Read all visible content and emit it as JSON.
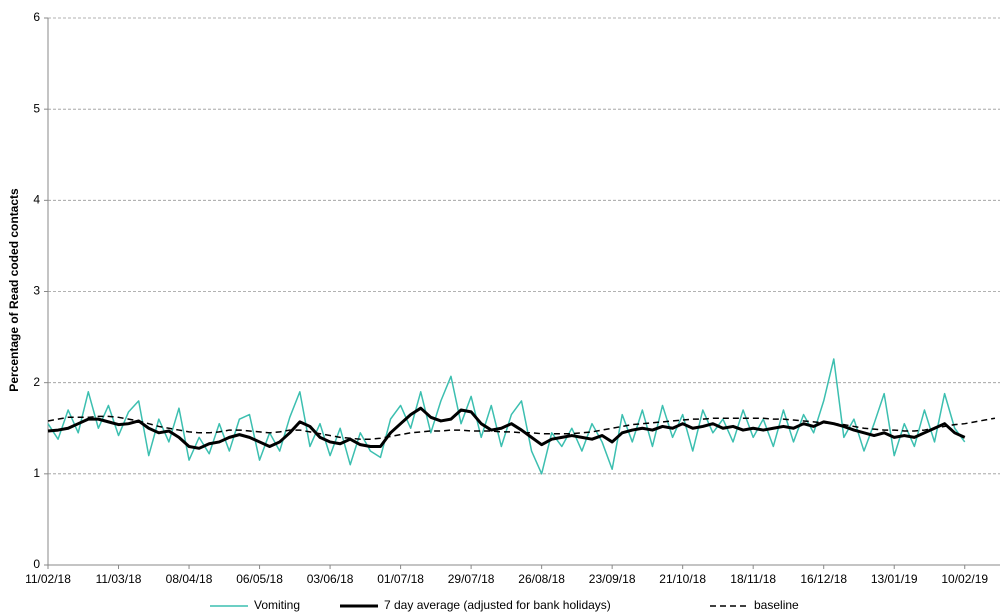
{
  "chart_data": {
    "type": "line",
    "y_label": "Percentage of Read coded contacts",
    "x": [
      "11/02/18",
      "15/02/18",
      "19/02/18",
      "23/02/18",
      "27/02/18",
      "03/03/18",
      "07/03/18",
      "11/03/18",
      "15/03/18",
      "19/03/18",
      "23/03/18",
      "27/03/18",
      "31/03/18",
      "04/04/18",
      "08/04/18",
      "12/04/18",
      "16/04/18",
      "20/04/18",
      "24/04/18",
      "28/04/18",
      "02/05/18",
      "06/05/18",
      "10/05/18",
      "14/05/18",
      "18/05/18",
      "22/05/18",
      "26/05/18",
      "30/05/18",
      "03/06/18",
      "07/06/18",
      "11/06/18",
      "15/06/18",
      "19/06/18",
      "23/06/18",
      "27/06/18",
      "01/07/18",
      "05/07/18",
      "09/07/18",
      "13/07/18",
      "17/07/18",
      "21/07/18",
      "25/07/18",
      "29/07/18",
      "02/08/18",
      "06/08/18",
      "10/08/18",
      "14/08/18",
      "18/08/18",
      "22/08/18",
      "26/08/18",
      "30/08/18",
      "03/09/18",
      "07/09/18",
      "11/09/18",
      "15/09/18",
      "19/09/18",
      "23/09/18",
      "27/09/18",
      "01/10/18",
      "05/10/18",
      "09/10/18",
      "13/10/18",
      "17/10/18",
      "21/10/18",
      "25/10/18",
      "29/10/18",
      "02/11/18",
      "06/11/18",
      "10/11/18",
      "14/11/18",
      "18/11/18",
      "22/11/18",
      "26/11/18",
      "30/11/18",
      "04/12/18",
      "08/12/18",
      "12/12/18",
      "16/12/18",
      "20/12/18",
      "24/12/18",
      "28/12/18",
      "01/01/19",
      "05/01/19",
      "09/01/19",
      "13/01/19",
      "17/01/19",
      "21/01/19",
      "25/01/19",
      "29/01/19",
      "02/02/19",
      "06/02/19",
      "10/02/19",
      "14/02/19",
      "18/02/19",
      "22/02/19"
    ],
    "series": [
      {
        "name": "Vomiting",
        "color": "#3cbfb0",
        "width": 1.5,
        "style": "solid",
        "values": [
          1.55,
          1.38,
          1.7,
          1.45,
          1.9,
          1.5,
          1.75,
          1.42,
          1.68,
          1.8,
          1.2,
          1.6,
          1.35,
          1.72,
          1.15,
          1.4,
          1.22,
          1.55,
          1.25,
          1.6,
          1.65,
          1.15,
          1.45,
          1.25,
          1.62,
          1.9,
          1.3,
          1.55,
          1.2,
          1.5,
          1.1,
          1.45,
          1.25,
          1.18,
          1.6,
          1.75,
          1.5,
          1.9,
          1.45,
          1.8,
          2.07,
          1.55,
          1.85,
          1.4,
          1.75,
          1.3,
          1.65,
          1.8,
          1.25,
          1.0,
          1.45,
          1.3,
          1.5,
          1.25,
          1.55,
          1.35,
          1.05,
          1.65,
          1.35,
          1.7,
          1.3,
          1.75,
          1.4,
          1.65,
          1.25,
          1.7,
          1.45,
          1.6,
          1.35,
          1.7,
          1.4,
          1.6,
          1.3,
          1.7,
          1.35,
          1.65,
          1.45,
          1.8,
          2.26,
          1.4,
          1.6,
          1.25,
          1.55,
          1.88,
          1.2,
          1.55,
          1.3,
          1.7,
          1.35,
          1.88,
          1.5,
          1.35,
          null,
          null,
          null
        ]
      },
      {
        "name": "7 day average (adjusted for bank holidays)",
        "color": "#000000",
        "width": 3,
        "style": "solid",
        "values": [
          1.47,
          1.48,
          1.5,
          1.55,
          1.6,
          1.6,
          1.57,
          1.54,
          1.55,
          1.58,
          1.5,
          1.45,
          1.47,
          1.4,
          1.3,
          1.28,
          1.33,
          1.35,
          1.4,
          1.43,
          1.4,
          1.35,
          1.3,
          1.35,
          1.45,
          1.57,
          1.52,
          1.4,
          1.35,
          1.33,
          1.38,
          1.32,
          1.3,
          1.3,
          1.45,
          1.55,
          1.65,
          1.72,
          1.62,
          1.58,
          1.6,
          1.7,
          1.68,
          1.55,
          1.48,
          1.5,
          1.55,
          1.48,
          1.4,
          1.32,
          1.38,
          1.4,
          1.42,
          1.4,
          1.38,
          1.42,
          1.35,
          1.45,
          1.48,
          1.5,
          1.48,
          1.52,
          1.5,
          1.55,
          1.5,
          1.52,
          1.55,
          1.5,
          1.52,
          1.48,
          1.5,
          1.48,
          1.5,
          1.52,
          1.5,
          1.55,
          1.52,
          1.57,
          1.55,
          1.52,
          1.48,
          1.45,
          1.42,
          1.45,
          1.4,
          1.42,
          1.4,
          1.45,
          1.5,
          1.55,
          1.45,
          1.4,
          null,
          null,
          null
        ]
      },
      {
        "name": "baseline",
        "color": "#000000",
        "width": 1.5,
        "style": "dashed",
        "values": [
          1.58,
          1.6,
          1.62,
          1.62,
          1.62,
          1.63,
          1.63,
          1.62,
          1.6,
          1.58,
          1.55,
          1.52,
          1.5,
          1.48,
          1.46,
          1.45,
          1.45,
          1.46,
          1.48,
          1.48,
          1.47,
          1.46,
          1.45,
          1.46,
          1.48,
          1.48,
          1.46,
          1.44,
          1.42,
          1.4,
          1.39,
          1.38,
          1.38,
          1.39,
          1.41,
          1.43,
          1.45,
          1.46,
          1.47,
          1.47,
          1.48,
          1.48,
          1.47,
          1.47,
          1.47,
          1.46,
          1.46,
          1.45,
          1.45,
          1.44,
          1.44,
          1.44,
          1.44,
          1.45,
          1.46,
          1.48,
          1.5,
          1.52,
          1.54,
          1.55,
          1.56,
          1.57,
          1.58,
          1.59,
          1.6,
          1.6,
          1.61,
          1.61,
          1.61,
          1.61,
          1.61,
          1.61,
          1.6,
          1.6,
          1.59,
          1.58,
          1.57,
          1.56,
          1.55,
          1.54,
          1.52,
          1.5,
          1.49,
          1.48,
          1.48,
          1.47,
          1.47,
          1.48,
          1.5,
          1.52,
          1.54,
          1.55,
          1.57,
          1.59,
          1.61
        ]
      }
    ],
    "xlim": [
      "11/02/18",
      "24/02/19"
    ],
    "xticks": [
      "11/02/18",
      "11/03/18",
      "08/04/18",
      "06/05/18",
      "03/06/18",
      "01/07/18",
      "29/07/18",
      "26/08/18",
      "23/09/18",
      "21/10/18",
      "18/11/18",
      "16/12/18",
      "13/01/19",
      "10/02/19"
    ],
    "ylim": [
      0,
      6
    ],
    "yticks": [
      0,
      1,
      2,
      3,
      4,
      5,
      6
    ],
    "grid": true,
    "legend": "bottom"
  }
}
